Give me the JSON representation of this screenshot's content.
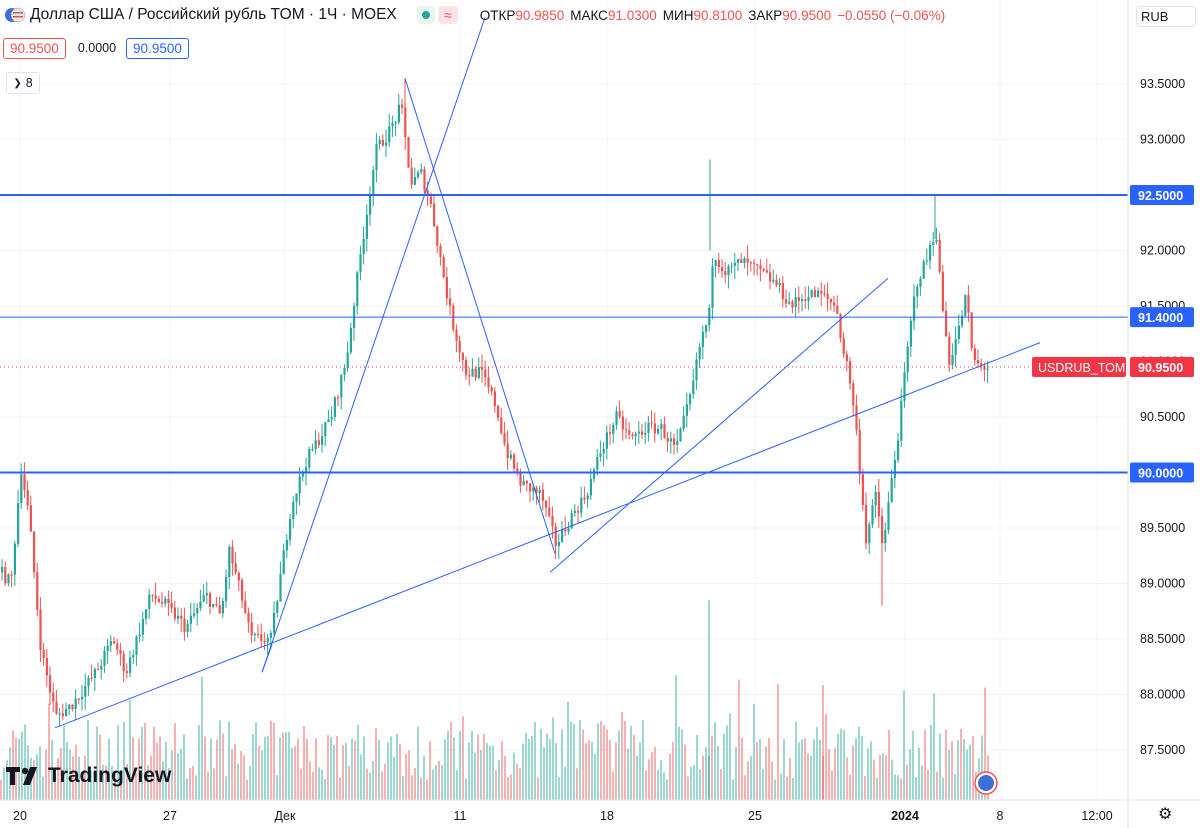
{
  "header": {
    "title": "Доллар США / Российский рубль TOM · 1Ч · MOEX",
    "ohlc": [
      {
        "label": "ОТКР",
        "value": "90.9850"
      },
      {
        "label": "МАКС",
        "value": "91.0300"
      },
      {
        "label": "МИН",
        "value": "90.8100"
      },
      {
        "label": "ЗАКР",
        "value": "90.9500"
      }
    ],
    "change": "−0.0550 (−0.06%)",
    "bid": "90.9500",
    "spread": "0.0000",
    "ask": "90.9500",
    "indicators_count": "8",
    "currency": "RUB"
  },
  "brand": "TradingView",
  "chart_data": {
    "type": "candlestick",
    "symbol_tag": "USDRUB_TOM",
    "last_price": "90.9500",
    "y_ticks": [
      "93.5000",
      "93.0000",
      "92.5000",
      "92.0000",
      "91.5000",
      "91.0000",
      "90.5000",
      "90.0000",
      "89.5000",
      "89.0000",
      "88.5000",
      "88.0000",
      "87.5000"
    ],
    "x_ticks": [
      "20",
      "27",
      "Дек",
      "11",
      "18",
      "25",
      "2024",
      "8",
      "12:00"
    ],
    "horizontal_levels": [
      {
        "price": "92.5000",
        "style": "thick",
        "color": "#2962ff"
      },
      {
        "price": "91.4000",
        "style": "thin",
        "color": "#2962ff"
      },
      {
        "price": "90.0000",
        "style": "thick",
        "color": "#2962ff"
      }
    ],
    "trend_lines": [
      {
        "from": [
          "2023-11-21",
          87.72
        ],
        "to": [
          "2024-01-08",
          91.2
        ]
      },
      {
        "from": [
          "2023-11-30",
          88.2
        ],
        "to": [
          "2023-12-08",
          93.55
        ]
      },
      {
        "from": [
          "2023-12-08",
          93.55
        ],
        "to": [
          "2023-12-15",
          89.27
        ]
      },
      {
        "from": [
          "2023-12-14",
          89.1
        ],
        "to": [
          "2023-12-28",
          91.75
        ]
      },
      {
        "from": [
          "2023-11-30",
          88.2
        ],
        "to": [
          "2023-12-08",
          94.1
        ]
      }
    ],
    "up_color": "#26a69a",
    "down_color": "#ef5350",
    "level_color": "#2962ff",
    "price_tag_color": "#f23645"
  }
}
